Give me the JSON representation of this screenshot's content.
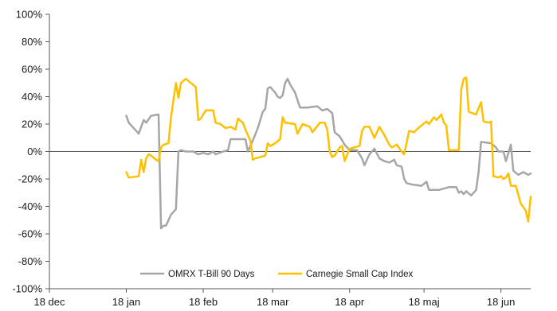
{
  "chart_data": {
    "type": "line",
    "title": "",
    "xlabel": "",
    "ylabel": "",
    "ylim": [
      -100,
      100
    ],
    "yticks": [
      100,
      80,
      60,
      40,
      20,
      0,
      -20,
      -40,
      -60,
      -80,
      -100
    ],
    "ytick_labels": [
      "100%",
      "80%",
      "60%",
      "40%",
      "20%",
      "0%",
      "-20%",
      "-40%",
      "-60%",
      "-80%",
      "-100%"
    ],
    "xlim": [
      "2018-12-18",
      "2019-06-30"
    ],
    "xticks": [
      "2018-12-18",
      "2019-01-18",
      "2019-02-18",
      "2019-03-18",
      "2019-04-18",
      "2019-05-18",
      "2019-06-18"
    ],
    "xtick_labels": [
      "18 dec",
      "18 jan",
      "18 feb",
      "18 mar",
      "18 apr",
      "18 maj",
      "18 jun"
    ],
    "grid": false,
    "legend_position": "bottom-center",
    "series": [
      {
        "name": "OMRX T-Bill 90 Days",
        "color": "#a6a6a6",
        "points": [
          [
            "2019-01-18",
            26
          ],
          [
            "2019-01-19",
            21
          ],
          [
            "2019-01-21",
            17
          ],
          [
            "2019-01-23",
            13
          ],
          [
            "2019-01-25",
            23
          ],
          [
            "2019-01-26",
            21
          ],
          [
            "2019-01-28",
            26
          ],
          [
            "2019-01-31",
            27
          ],
          [
            "2019-02-01",
            -56
          ],
          [
            "2019-02-02",
            -54
          ],
          [
            "2019-02-03",
            -54
          ],
          [
            "2019-02-05",
            -46
          ],
          [
            "2019-02-07",
            -42
          ],
          [
            "2019-02-08",
            0
          ],
          [
            "2019-02-09",
            1
          ],
          [
            "2019-02-11",
            0
          ],
          [
            "2019-02-14",
            0
          ],
          [
            "2019-02-16",
            -2
          ],
          [
            "2019-02-18",
            -1
          ],
          [
            "2019-02-20",
            -2
          ],
          [
            "2019-02-22",
            0
          ],
          [
            "2019-02-23",
            -2
          ],
          [
            "2019-02-26",
            0
          ],
          [
            "2019-02-28",
            1
          ],
          [
            "2019-03-01",
            9
          ],
          [
            "2019-03-05",
            9
          ],
          [
            "2019-03-07",
            9
          ],
          [
            "2019-03-08",
            0
          ],
          [
            "2019-03-10",
            8
          ],
          [
            "2019-03-12",
            17
          ],
          [
            "2019-03-14",
            29
          ],
          [
            "2019-03-15",
            31
          ],
          [
            "2019-03-16",
            46
          ],
          [
            "2019-03-17",
            47
          ],
          [
            "2019-03-19",
            43
          ],
          [
            "2019-03-20",
            40
          ],
          [
            "2019-03-21",
            39
          ],
          [
            "2019-03-22",
            41
          ],
          [
            "2019-03-23",
            50
          ],
          [
            "2019-03-24",
            53
          ],
          [
            "2019-03-25",
            49
          ],
          [
            "2019-03-27",
            43
          ],
          [
            "2019-03-29",
            32
          ],
          [
            "2019-04-01",
            32
          ],
          [
            "2019-04-05",
            33
          ],
          [
            "2019-04-07",
            30
          ],
          [
            "2019-04-09",
            31
          ],
          [
            "2019-04-11",
            28
          ],
          [
            "2019-04-12",
            14
          ],
          [
            "2019-04-14",
            11
          ],
          [
            "2019-04-16",
            5
          ],
          [
            "2019-04-18",
            1
          ],
          [
            "2019-04-21",
            1
          ],
          [
            "2019-04-23",
            -5
          ],
          [
            "2019-04-24",
            -10
          ],
          [
            "2019-04-26",
            -2
          ],
          [
            "2019-04-28",
            2
          ],
          [
            "2019-04-30",
            -5
          ],
          [
            "2019-05-02",
            -7
          ],
          [
            "2019-05-04",
            -8
          ],
          [
            "2019-05-06",
            -6
          ],
          [
            "2019-05-07",
            -10
          ],
          [
            "2019-05-09",
            -11
          ],
          [
            "2019-05-10",
            -20
          ],
          [
            "2019-05-11",
            -23
          ],
          [
            "2019-05-13",
            -24
          ],
          [
            "2019-05-17",
            -25
          ],
          [
            "2019-05-19",
            -22
          ],
          [
            "2019-05-20",
            -28
          ],
          [
            "2019-05-24",
            -28
          ],
          [
            "2019-05-26",
            -27
          ],
          [
            "2019-05-28",
            -26
          ],
          [
            "2019-05-31",
            -26
          ],
          [
            "2019-06-01",
            -30
          ],
          [
            "2019-06-02",
            -29
          ],
          [
            "2019-06-03",
            -31
          ],
          [
            "2019-06-04",
            -29
          ],
          [
            "2019-06-06",
            -32
          ],
          [
            "2019-06-08",
            -28
          ],
          [
            "2019-06-09",
            -15
          ],
          [
            "2019-06-10",
            7
          ],
          [
            "2019-06-14",
            6
          ],
          [
            "2019-06-16",
            3
          ],
          [
            "2019-06-17",
            0
          ],
          [
            "2019-06-19",
            0
          ],
          [
            "2019-06-20",
            -7
          ],
          [
            "2019-06-22",
            5
          ],
          [
            "2019-06-23",
            -14
          ],
          [
            "2019-06-25",
            -17
          ],
          [
            "2019-06-27",
            -15
          ],
          [
            "2019-06-29",
            -17
          ],
          [
            "2019-06-30",
            -16
          ]
        ]
      },
      {
        "name": "Carnegie Small Cap Index",
        "color": "#ffc000",
        "points": [
          [
            "2019-01-18",
            -15
          ],
          [
            "2019-01-19",
            -19
          ],
          [
            "2019-01-23",
            -18
          ],
          [
            "2019-01-24",
            -6
          ],
          [
            "2019-01-25",
            -15
          ],
          [
            "2019-01-26",
            -5
          ],
          [
            "2019-01-27",
            -2
          ],
          [
            "2019-01-28",
            -3
          ],
          [
            "2019-01-30",
            -6
          ],
          [
            "2019-01-31",
            -7
          ],
          [
            "2019-02-01",
            3
          ],
          [
            "2019-02-02",
            5
          ],
          [
            "2019-02-04",
            6
          ],
          [
            "2019-02-05",
            25
          ],
          [
            "2019-02-07",
            50
          ],
          [
            "2019-02-08",
            39
          ],
          [
            "2019-02-09",
            50
          ],
          [
            "2019-02-11",
            53
          ],
          [
            "2019-02-13",
            50
          ],
          [
            "2019-02-15",
            47
          ],
          [
            "2019-02-16",
            23
          ],
          [
            "2019-02-17",
            24
          ],
          [
            "2019-02-19",
            30
          ],
          [
            "2019-02-22",
            30
          ],
          [
            "2019-02-23",
            21
          ],
          [
            "2019-02-25",
            20
          ],
          [
            "2019-02-27",
            17
          ],
          [
            "2019-03-01",
            18
          ],
          [
            "2019-03-03",
            16
          ],
          [
            "2019-03-04",
            24
          ],
          [
            "2019-03-06",
            21
          ],
          [
            "2019-03-07",
            16
          ],
          [
            "2019-03-09",
            8
          ],
          [
            "2019-03-10",
            -6
          ],
          [
            "2019-03-11",
            -5
          ],
          [
            "2019-03-13",
            -4
          ],
          [
            "2019-03-15",
            -3
          ],
          [
            "2019-03-16",
            6
          ],
          [
            "2019-03-17",
            4
          ],
          [
            "2019-03-19",
            6
          ],
          [
            "2019-03-21",
            9
          ],
          [
            "2019-03-22",
            25
          ],
          [
            "2019-03-23",
            21
          ],
          [
            "2019-03-27",
            20
          ],
          [
            "2019-03-28",
            13
          ],
          [
            "2019-03-30",
            20
          ],
          [
            "2019-04-02",
            18
          ],
          [
            "2019-04-03",
            14
          ],
          [
            "2019-04-06",
            21
          ],
          [
            "2019-04-08",
            21
          ],
          [
            "2019-04-09",
            16
          ],
          [
            "2019-04-10",
            0
          ],
          [
            "2019-04-11",
            -4
          ],
          [
            "2019-04-12",
            -3
          ],
          [
            "2019-04-14",
            3
          ],
          [
            "2019-04-15",
            4
          ],
          [
            "2019-04-16",
            -7
          ],
          [
            "2019-04-18",
            2
          ],
          [
            "2019-04-20",
            3
          ],
          [
            "2019-04-22",
            4
          ],
          [
            "2019-04-23",
            15
          ],
          [
            "2019-04-24",
            18
          ],
          [
            "2019-04-26",
            18
          ],
          [
            "2019-04-28",
            10
          ],
          [
            "2019-04-30",
            18
          ],
          [
            "2019-05-02",
            12
          ],
          [
            "2019-05-04",
            5
          ],
          [
            "2019-05-05",
            3
          ],
          [
            "2019-05-07",
            5
          ],
          [
            "2019-05-09",
            0
          ],
          [
            "2019-05-10",
            -2
          ],
          [
            "2019-05-12",
            15
          ],
          [
            "2019-05-14",
            14
          ],
          [
            "2019-05-15",
            16
          ],
          [
            "2019-05-17",
            19
          ],
          [
            "2019-05-19",
            22
          ],
          [
            "2019-05-20",
            20
          ],
          [
            "2019-05-22",
            25
          ],
          [
            "2019-05-23",
            23
          ],
          [
            "2019-05-25",
            27
          ],
          [
            "2019-05-26",
            21
          ],
          [
            "2019-05-27",
            19
          ],
          [
            "2019-05-28",
            1
          ],
          [
            "2019-06-01",
            1
          ],
          [
            "2019-06-02",
            45
          ],
          [
            "2019-06-03",
            53
          ],
          [
            "2019-06-04",
            54
          ],
          [
            "2019-06-05",
            29
          ],
          [
            "2019-06-08",
            27
          ],
          [
            "2019-06-10",
            36
          ],
          [
            "2019-06-11",
            22
          ],
          [
            "2019-06-13",
            21
          ],
          [
            "2019-06-14",
            22
          ],
          [
            "2019-06-15",
            -18
          ],
          [
            "2019-06-17",
            -19
          ],
          [
            "2019-06-18",
            -18
          ],
          [
            "2019-06-19",
            -20
          ],
          [
            "2019-06-20",
            -19
          ],
          [
            "2019-06-21",
            -16
          ],
          [
            "2019-06-22",
            -25
          ],
          [
            "2019-06-24",
            -25
          ],
          [
            "2019-06-26",
            -38
          ],
          [
            "2019-06-28",
            -43
          ],
          [
            "2019-06-29",
            -51
          ],
          [
            "2019-06-30",
            -33
          ]
        ]
      }
    ]
  }
}
